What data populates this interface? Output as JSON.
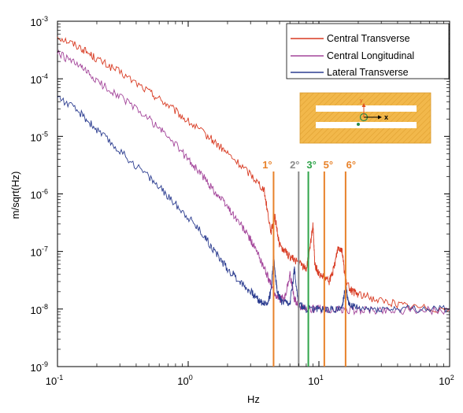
{
  "chart_data": {
    "type": "line",
    "title": "",
    "xlabel": "Hz",
    "ylabel": "m/sqrt(Hz)",
    "xscale": "log",
    "yscale": "log",
    "xlim": [
      0.1,
      100
    ],
    "ylim": [
      1e-09,
      0.001
    ],
    "x_ticks": [
      {
        "value": 0.1,
        "base": "10",
        "exp": "-1"
      },
      {
        "value": 1,
        "base": "10",
        "exp": "0"
      },
      {
        "value": 10,
        "base": "10",
        "exp": "1"
      },
      {
        "value": 100,
        "base": "10",
        "exp": "2"
      }
    ],
    "y_ticks": [
      {
        "value": 0.001,
        "base": "10",
        "exp": "-3"
      },
      {
        "value": 0.0001,
        "base": "10",
        "exp": "-4"
      },
      {
        "value": 1e-05,
        "base": "10",
        "exp": "-5"
      },
      {
        "value": 1e-06,
        "base": "10",
        "exp": "-6"
      },
      {
        "value": 1e-07,
        "base": "10",
        "exp": "-7"
      },
      {
        "value": 1e-08,
        "base": "10",
        "exp": "-8"
      },
      {
        "value": 1e-09,
        "base": "10",
        "exp": "-9"
      }
    ],
    "grid": false,
    "legend_position": "top-right",
    "series": [
      {
        "name": "Central Transverse",
        "color": "#d83a22",
        "x": [
          0.1,
          0.15,
          0.2,
          0.3,
          0.5,
          0.7,
          1,
          1.5,
          2,
          3,
          3.8,
          4.3,
          4.6,
          5,
          6,
          7,
          8,
          8.5,
          9,
          9.3,
          10,
          12,
          13,
          14,
          15,
          16,
          18,
          20,
          30,
          50,
          100
        ],
        "y": [
          0.00055,
          0.00035,
          0.00022,
          0.00013,
          6e-05,
          3.5e-05,
          1.8e-05,
          9e-06,
          5e-06,
          2.2e-06,
          1.2e-06,
          2.2e-07,
          4e-07,
          1.3e-07,
          8e-08,
          6.5e-08,
          5e-08,
          1e-07,
          3e-07,
          6e-08,
          4e-08,
          3e-08,
          5e-08,
          1.2e-07,
          1.1e-07,
          3e-08,
          2e-08,
          1.8e-08,
          1.4e-08,
          1.1e-08,
          1e-08
        ]
      },
      {
        "name": "Central Longitudinal",
        "color": "#a3459a",
        "x": [
          0.1,
          0.15,
          0.2,
          0.3,
          0.5,
          0.7,
          1,
          1.3,
          1.6,
          2,
          2.5,
          3,
          3.5,
          4,
          4.5,
          5,
          5.5,
          6,
          6.5,
          7,
          8,
          10,
          15,
          20,
          30,
          50,
          100
        ],
        "y": [
          0.00028,
          0.00016,
          9e-05,
          5e-05,
          2e-05,
          1e-05,
          4e-06,
          2e-06,
          1.1e-06,
          6e-07,
          3e-07,
          1.6e-07,
          8e-08,
          4e-08,
          2e-08,
          1.5e-08,
          1.6e-08,
          4e-08,
          1.5e-08,
          1.1e-08,
          1e-08,
          1e-08,
          9.5e-09,
          9.5e-09,
          9.5e-09,
          9.5e-09,
          9.5e-09
        ]
      },
      {
        "name": "Lateral Transverse",
        "color": "#2c3d90",
        "x": [
          0.1,
          0.15,
          0.2,
          0.3,
          0.5,
          0.7,
          1,
          1.3,
          1.6,
          2,
          2.5,
          3,
          3.5,
          4,
          4.3,
          4.5,
          4.8,
          5.2,
          6,
          6.5,
          7,
          8,
          10,
          12,
          15,
          16,
          17,
          20,
          30,
          50,
          100
        ],
        "y": [
          5e-05,
          2.5e-05,
          1.3e-05,
          5.5e-06,
          2e-06,
          9e-07,
          4e-07,
          2e-07,
          1e-07,
          5e-08,
          3e-08,
          2e-08,
          1.4e-08,
          1.2e-08,
          2e-08,
          8e-08,
          2e-08,
          1.3e-08,
          1.2e-08,
          5e-08,
          1.2e-08,
          1e-08,
          1e-08,
          1e-08,
          1e-08,
          2.5e-08,
          1.2e-08,
          1e-08,
          1e-08,
          1e-08,
          1e-08
        ]
      }
    ],
    "mode_lines": [
      {
        "label": "1°",
        "x": 4.5,
        "color": "#e8822a"
      },
      {
        "label": "2°",
        "x": 7.0,
        "color": "#8a8a8a"
      },
      {
        "label": "3°",
        "x": 8.3,
        "color": "#2fa44a"
      },
      {
        "label": "5°",
        "x": 11.0,
        "color": "#e8822a"
      },
      {
        "label": "6°",
        "x": 16.0,
        "color": "#e8822a"
      }
    ],
    "inset": {
      "x_label": "x",
      "y_label": "y",
      "fill_color": "#f2b84b"
    }
  }
}
